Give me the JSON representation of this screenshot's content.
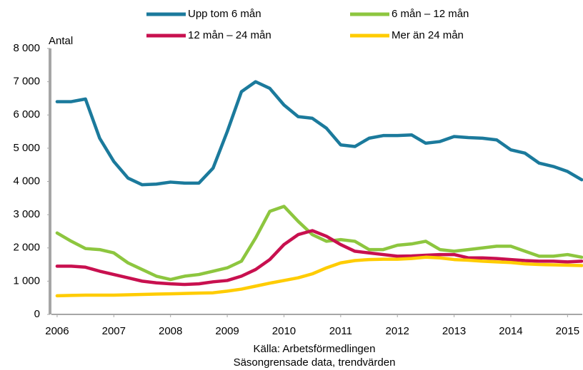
{
  "chart_data": {
    "type": "line",
    "y_label": "Antal",
    "source": [
      "Källa: Arbetsförmedlingen",
      "Säsongrensade data, trendvärden"
    ],
    "x": [
      2006,
      2006.25,
      2006.5,
      2006.75,
      2007,
      2007.25,
      2007.5,
      2007.75,
      2008,
      2008.25,
      2008.5,
      2008.75,
      2009,
      2009.25,
      2009.5,
      2009.75,
      2010,
      2010.25,
      2010.5,
      2010.75,
      2011,
      2011.25,
      2011.5,
      2011.75,
      2012,
      2012.25,
      2012.5,
      2012.75,
      2013,
      2013.25,
      2013.5,
      2013.75,
      2014,
      2014.25,
      2014.5,
      2014.75,
      2015,
      2015.25
    ],
    "xlim": [
      2005.9,
      2015.26
    ],
    "xticks": [
      2006,
      2007,
      2008,
      2009,
      2010,
      2011,
      2012,
      2013,
      2014,
      2015
    ],
    "ylim": [
      0,
      8000
    ],
    "yticks": [
      0,
      {
        "value": 1000,
        "label": "1 000"
      },
      {
        "value": 2000,
        "label": "2 000"
      },
      {
        "value": 3000,
        "label": "3 000"
      },
      {
        "value": 4000,
        "label": "4 000"
      },
      {
        "value": 5000,
        "label": "5 000"
      },
      {
        "value": 6000,
        "label": "6 000"
      },
      {
        "value": 7000,
        "label": "7 000"
      },
      {
        "value": 8000,
        "label": "8 000"
      }
    ],
    "series": [
      {
        "name": "Upp tom 6 mån",
        "color": "#1b7a9c",
        "values": [
          6400,
          6400,
          6480,
          5300,
          4600,
          4100,
          3900,
          3920,
          3980,
          3950,
          3950,
          4400,
          5500,
          6700,
          7000,
          6800,
          6300,
          5950,
          5900,
          5600,
          5100,
          5050,
          5300,
          5380,
          5380,
          5400,
          5150,
          5200,
          5350,
          5320,
          5300,
          5250,
          4950,
          4850,
          4550,
          4450,
          4300,
          4050
        ]
      },
      {
        "name": "6 mån – 12 mån",
        "color": "#8dc63f",
        "values": [
          2450,
          2200,
          1980,
          1950,
          1850,
          1550,
          1350,
          1150,
          1050,
          1150,
          1200,
          1300,
          1400,
          1600,
          2300,
          3100,
          3250,
          2800,
          2400,
          2200,
          2250,
          2200,
          1950,
          1950,
          2080,
          2120,
          2200,
          1950,
          1900,
          1950,
          2000,
          2050,
          2050,
          1900,
          1750,
          1750,
          1800,
          1720
        ]
      },
      {
        "name": "12 mån – 24 mån",
        "color": "#c8104f",
        "values": [
          1450,
          1450,
          1420,
          1300,
          1200,
          1100,
          1000,
          950,
          920,
          900,
          920,
          980,
          1020,
          1150,
          1350,
          1650,
          2100,
          2400,
          2520,
          2350,
          2100,
          1900,
          1850,
          1800,
          1750,
          1760,
          1780,
          1800,
          1800,
          1700,
          1700,
          1680,
          1650,
          1620,
          1600,
          1600,
          1580,
          1600
        ]
      },
      {
        "name": "Mer än 24 mån",
        "color": "#ffcc00",
        "values": [
          560,
          570,
          580,
          580,
          580,
          590,
          600,
          610,
          620,
          630,
          640,
          650,
          700,
          760,
          850,
          940,
          1020,
          1100,
          1220,
          1400,
          1550,
          1620,
          1650,
          1660,
          1660,
          1680,
          1720,
          1700,
          1650,
          1630,
          1600,
          1580,
          1560,
          1520,
          1500,
          1490,
          1480,
          1470
        ]
      }
    ]
  }
}
